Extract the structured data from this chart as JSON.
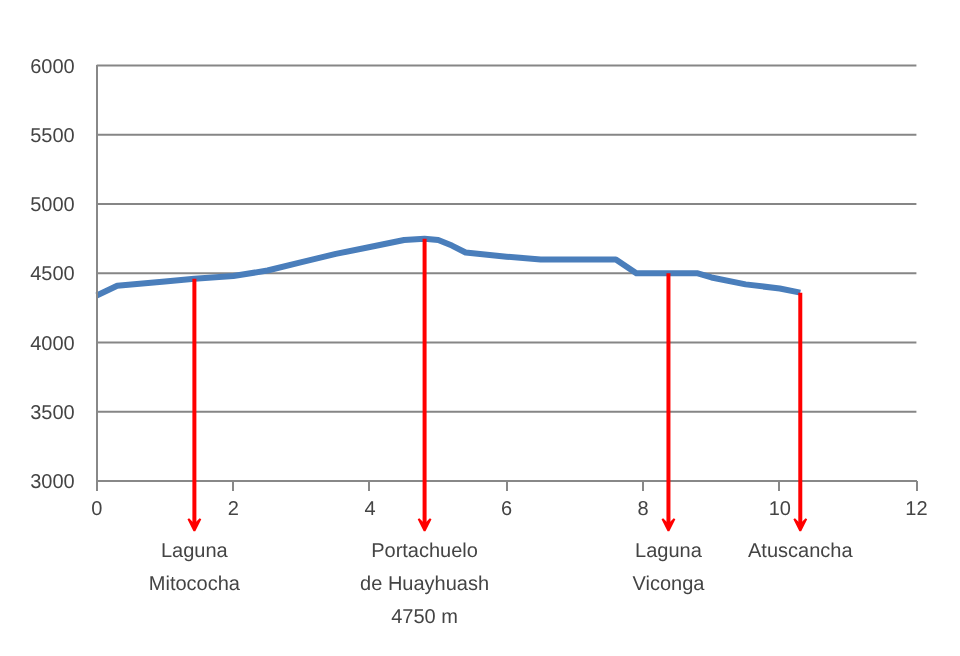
{
  "chart_data": {
    "type": "line",
    "x": [
      0,
      0.3,
      1,
      1.43,
      2,
      2.5,
      3,
      3.5,
      4,
      4.5,
      4.8,
      5,
      5.2,
      5.4,
      6,
      6.5,
      7,
      7.6,
      7.9,
      8.37,
      8.8,
      9,
      9.5,
      10,
      10.3
    ],
    "series": [
      {
        "color": "#4a7ebb",
        "values": [
          4340,
          4410,
          4440,
          4460,
          4480,
          4520,
          4580,
          4640,
          4690,
          4740,
          4750,
          4740,
          4700,
          4650,
          4620,
          4600,
          4600,
          4600,
          4500,
          4500,
          4500,
          4470,
          4420,
          4390,
          4360
        ]
      }
    ],
    "xlim": [
      0,
      12
    ],
    "xticks": [
      0,
      2,
      4,
      6,
      8,
      10,
      12
    ],
    "ylim": [
      3000,
      6000
    ],
    "yticks": [
      3000,
      3500,
      4000,
      4500,
      5000,
      5500,
      6000
    ],
    "grid": "y",
    "marker": "none",
    "line_style": "solid",
    "annotations": [
      {
        "text": "Laguna\nMitococha",
        "x": 1.43,
        "y": 4460
      },
      {
        "text": "Portachuelo\nde Huayhuash\n4750 m",
        "x": 4.8,
        "y": 4750
      },
      {
        "text": "Laguna\nViconga",
        "x": 8.37,
        "y": 4500
      },
      {
        "text": "Atuscancha",
        "x": 10.3,
        "y": 4360
      }
    ]
  }
}
